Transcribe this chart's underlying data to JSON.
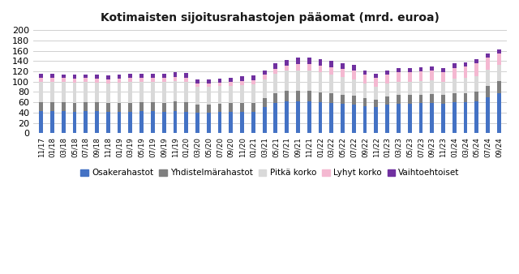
{
  "title": "Kotimaisten sijoitusrahastojen pääomat (mrd. euroa)",
  "categories": [
    "11/17",
    "01/18",
    "03/18",
    "05/18",
    "07/18",
    "09/18",
    "11/18",
    "01/19",
    "03/19",
    "05/19",
    "07/19",
    "09/19",
    "11/19",
    "01/20",
    "03/20",
    "05/20",
    "07/20",
    "09/20",
    "11/20",
    "01/21",
    "03/21",
    "05/21",
    "07/21",
    "09/21",
    "11/21",
    "01/22",
    "03/22",
    "05/22",
    "07/22",
    "09/22",
    "11/22",
    "01/23",
    "03/23",
    "05/23",
    "07/23",
    "09/23",
    "11/23",
    "01/24",
    "03/24",
    "05/24",
    "07/24",
    "09/24"
  ],
  "osakerahastot": [
    43,
    43,
    43,
    42,
    43,
    43,
    41,
    42,
    42,
    43,
    43,
    42,
    43,
    42,
    40,
    40,
    41,
    42,
    42,
    42,
    50,
    59,
    62,
    62,
    62,
    60,
    59,
    57,
    55,
    52,
    50,
    55,
    57,
    57,
    58,
    58,
    57,
    60,
    60,
    62,
    70,
    77
  ],
  "yhdistelmärahastot": [
    17,
    17,
    17,
    17,
    17,
    17,
    17,
    17,
    17,
    17,
    17,
    17,
    18,
    18,
    16,
    16,
    16,
    16,
    17,
    17,
    18,
    19,
    20,
    20,
    20,
    19,
    18,
    17,
    17,
    16,
    15,
    16,
    17,
    17,
    17,
    18,
    17,
    18,
    18,
    19,
    21,
    24
  ],
  "pitkä_korko": [
    40,
    40,
    39,
    39,
    39,
    38,
    38,
    39,
    40,
    40,
    40,
    40,
    40,
    40,
    34,
    34,
    34,
    34,
    35,
    36,
    37,
    38,
    39,
    40,
    40,
    40,
    37,
    35,
    33,
    28,
    25,
    25,
    26,
    26,
    26,
    26,
    26,
    28,
    29,
    30,
    32,
    32
  ],
  "lyhyt_korko": [
    8,
    8,
    8,
    8,
    8,
    8,
    8,
    8,
    8,
    8,
    8,
    8,
    8,
    8,
    7,
    7,
    7,
    7,
    7,
    8,
    8,
    9,
    10,
    12,
    12,
    12,
    14,
    16,
    17,
    18,
    17,
    18,
    18,
    18,
    19,
    19,
    19,
    21,
    23,
    24,
    23,
    22
  ],
  "vaihtoehtoiset": [
    7,
    7,
    7,
    7,
    7,
    8,
    8,
    8,
    8,
    8,
    8,
    8,
    9,
    9,
    8,
    8,
    8,
    8,
    9,
    9,
    9,
    10,
    11,
    12,
    12,
    12,
    12,
    11,
    10,
    8,
    8,
    8,
    8,
    8,
    8,
    8,
    8,
    8,
    8,
    8,
    8,
    8
  ],
  "colors": {
    "osakerahastot": "#4472C4",
    "yhdistelmärahastot": "#7F7F7F",
    "pitkä_korko": "#D9D9D9",
    "lyhyt_korko": "#F4B8D1",
    "vaihtoehtoiset": "#7030A0"
  },
  "legend_labels": [
    "Osakerahastot",
    "Yhdistelmärahastot",
    "Pitkä korko",
    "Lyhyt korko",
    "Vaihtoehtoiset"
  ],
  "ylim": [
    0,
    200
  ],
  "yticks": [
    0,
    20,
    40,
    60,
    80,
    100,
    120,
    140,
    160,
    180,
    200
  ],
  "background_color": "#ffffff",
  "grid_color": "#d0d0d0"
}
